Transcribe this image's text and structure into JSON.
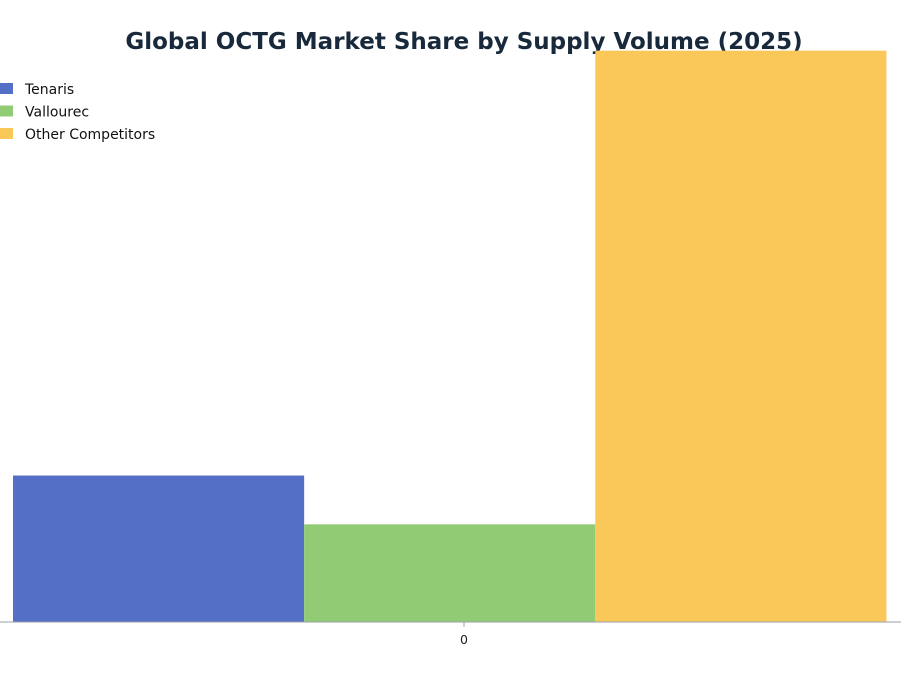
{
  "chart_data": {
    "type": "bar",
    "title": "Global OCTG Market Share by Supply Volume (2025)",
    "categories": [
      "0"
    ],
    "series": [
      {
        "name": "Tenaris",
        "values": [
          15
        ],
        "color": "#5470c6"
      },
      {
        "name": "Vallourec",
        "values": [
          10
        ],
        "color": "#91cc75"
      },
      {
        "name": "Other Competitors",
        "values": [
          58.5
        ],
        "color": "#f9c859"
      }
    ],
    "xlabel": "",
    "ylabel": "",
    "ylim": [
      0,
      60
    ],
    "grid": false,
    "legend": "top-left"
  }
}
